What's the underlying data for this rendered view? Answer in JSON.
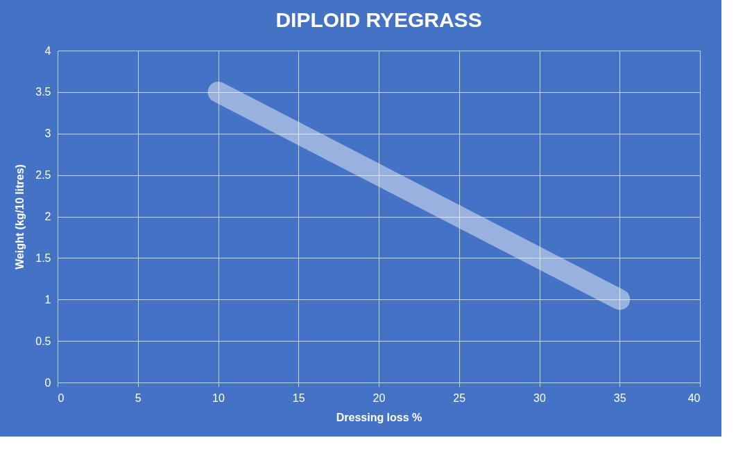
{
  "chart_data": {
    "type": "line",
    "title": "DIPLOID RYEGRASS",
    "xlabel": "Dressing loss %",
    "ylabel": "Weight (kg/10 litres)",
    "x": [
      10,
      35
    ],
    "series": [
      {
        "color": "#ffffff",
        "values": [
          3.5,
          1
        ]
      }
    ],
    "xlim": [
      0,
      40
    ],
    "xticks": [
      0,
      5,
      10,
      15,
      20,
      25,
      30,
      35,
      40
    ],
    "ylim": [
      0,
      4
    ],
    "yticks": [
      0,
      0.5,
      1,
      1.5,
      2,
      2.5,
      3,
      3.5,
      4
    ],
    "grid": true,
    "marker": "none",
    "line_style": "solid"
  }
}
